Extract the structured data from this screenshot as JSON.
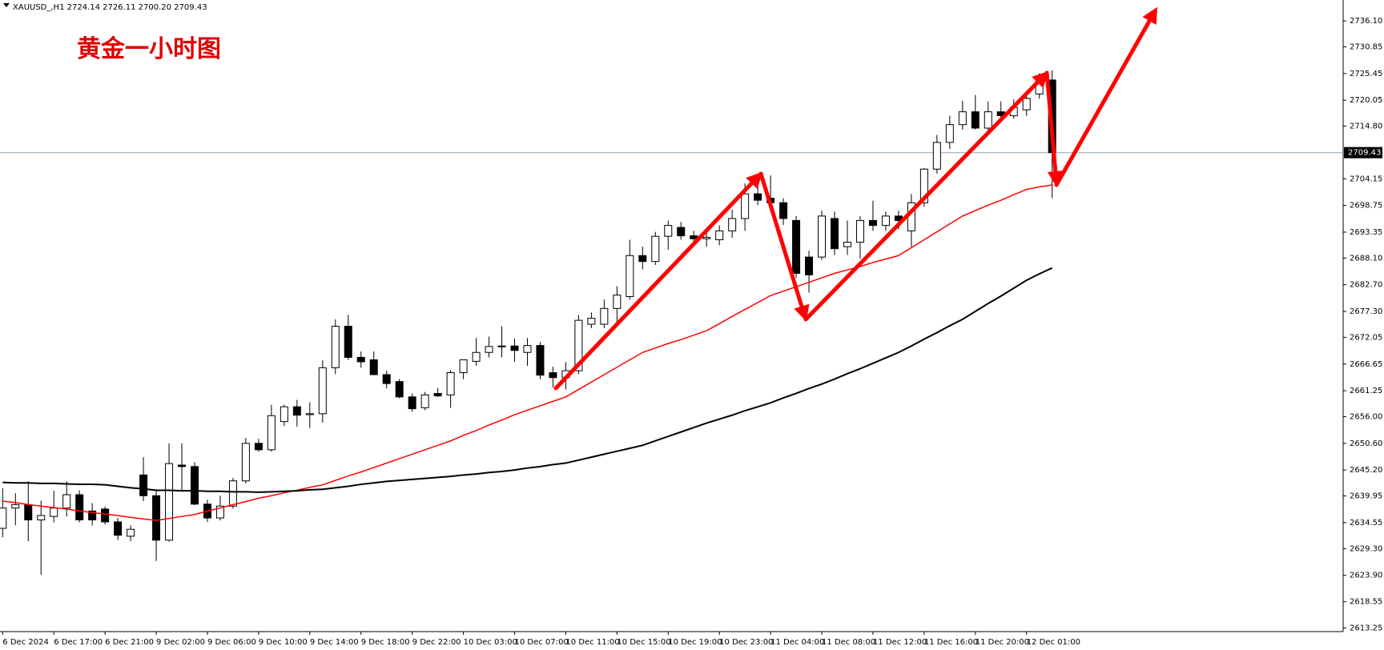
{
  "chart_data": {
    "type": "candlestick",
    "header": "XAUUSD_,H1  2724.14 2726.11 2700.20 2709.43",
    "annotation": "黄金一小时图",
    "categories": [
      "6 Dec 2024",
      null,
      null,
      null,
      "6 Dec 17:00",
      null,
      null,
      null,
      "6 Dec 21:00",
      null,
      null,
      null,
      "9 Dec 02:00",
      null,
      null,
      null,
      "9 Dec 06:00",
      null,
      null,
      null,
      "9 Dec 10:00",
      null,
      null,
      null,
      "9 Dec 14:00",
      null,
      null,
      null,
      "9 Dec 18:00",
      null,
      null,
      null,
      "9 Dec 22:00",
      null,
      null,
      null,
      "10 Dec 03:00",
      null,
      null,
      null,
      "10 Dec 07:00",
      null,
      null,
      null,
      "10 Dec 11:00",
      null,
      null,
      null,
      "10 Dec 15:00",
      null,
      null,
      null,
      "10 Dec 19:00",
      null,
      null,
      null,
      "10 Dec 23:00",
      null,
      null,
      null,
      "11 Dec 04:00",
      null,
      null,
      null,
      "11 Dec 08:00",
      null,
      null,
      null,
      "11 Dec 12:00",
      null,
      null,
      null,
      "11 Dec 16:00",
      null,
      null,
      null,
      "11 Dec 20:00",
      null,
      null,
      null,
      "12 Dec 01:00",
      null,
      null
    ],
    "open": [
      2633.4,
      2637.5,
      2638.2,
      2635.1,
      2635.8,
      2637.5,
      2640.2,
      2636.9,
      2637.3,
      2634.7,
      2631.8,
      2644.2,
      2640.0,
      2631.0,
      2646.2,
      2645.9,
      2638.3,
      2635.5,
      2637.9,
      2643.0,
      2650.6,
      2649.3,
      2655.0,
      2658.0,
      2656.4,
      2656.6,
      2665.9,
      2674.3,
      2668.0,
      2667.5,
      2664.5,
      2663.1,
      2660.0,
      2657.8,
      2660.7,
      2660.4,
      2664.9,
      2667.2,
      2669.0,
      2670.2,
      2670.3,
      2669.0,
      2670.4,
      2664.9,
      2663.9,
      2665.3,
      2674.7,
      2674.7,
      2677.9,
      2680.3,
      2688.6,
      2687.4,
      2692.5,
      2694.3,
      2692.6,
      2692.0,
      2691.8,
      2693.6,
      2696.1,
      2701.1,
      2700.2,
      2699.3,
      2695.7,
      2688.3,
      2688.3,
      2696.1,
      2690.4,
      2691.3,
      2695.7,
      2694.7,
      2696.6,
      2693.6,
      2699.3,
      2706.1,
      2711.5,
      2715.1,
      2717.7,
      2714.4,
      2717.7,
      2716.9,
      2718.1,
      2721.3,
      2724.14
    ],
    "high": [
      2641.5,
      2640.5,
      2642.9,
      2639.0,
      2641.0,
      2642.9,
      2641.1,
      2638.5,
      2637.8,
      2635.5,
      2634.0,
      2647.8,
      2641.2,
      2650.6,
      2650.6,
      2646.8,
      2639.2,
      2640.0,
      2643.6,
      2651.7,
      2651.5,
      2658.4,
      2658.4,
      2659.4,
      2658.9,
      2667.4,
      2675.7,
      2676.6,
      2669.2,
      2669.2,
      2665.3,
      2663.6,
      2660.7,
      2661.0,
      2661.8,
      2665.4,
      2667.5,
      2671.9,
      2672.2,
      2674.3,
      2671.8,
      2671.9,
      2671.1,
      2666.1,
      2667.0,
      2676.6,
      2677.1,
      2679.7,
      2682.4,
      2691.8,
      2690.4,
      2693.4,
      2695.7,
      2695.4,
      2693.6,
      2693.8,
      2694.7,
      2697.9,
      2703.2,
      2703.2,
      2704.8,
      2700.2,
      2696.6,
      2689.6,
      2697.7,
      2697.5,
      2695.7,
      2696.6,
      2699.7,
      2697.5,
      2697.7,
      2701.1,
      2706.3,
      2713.0,
      2716.9,
      2719.9,
      2721.1,
      2719.8,
      2719.8,
      2720.2,
      2721.8,
      2725.5,
      2726.11
    ],
    "low": [
      2631.6,
      2634.0,
      2630.8,
      2624.0,
      2634.6,
      2635.8,
      2634.6,
      2634.0,
      2634.2,
      2631.0,
      2630.8,
      2638.9,
      2626.8,
      2630.7,
      2641.0,
      2638.1,
      2634.7,
      2635.0,
      2637.4,
      2642.5,
      2648.9,
      2648.9,
      2654.1,
      2654.0,
      2653.7,
      2654.8,
      2664.6,
      2667.5,
      2665.9,
      2664.4,
      2661.7,
      2659.7,
      2657.0,
      2657.3,
      2660.0,
      2657.8,
      2663.6,
      2666.3,
      2668.0,
      2668.0,
      2667.1,
      2666.3,
      2663.6,
      2661.9,
      2661.5,
      2664.6,
      2673.9,
      2673.9,
      2674.2,
      2679.7,
      2685.8,
      2686.7,
      2689.8,
      2691.8,
      2690.7,
      2690.4,
      2690.7,
      2692.2,
      2693.6,
      2698.8,
      2697.5,
      2694.8,
      2684.1,
      2681.1,
      2687.7,
      2688.7,
      2688.7,
      2688.0,
      2693.6,
      2693.6,
      2693.9,
      2690.4,
      2698.5,
      2705.2,
      2710.2,
      2714.1,
      2714.1,
      2713.9,
      2716.3,
      2716.3,
      2716.9,
      2720.4,
      2700.2
    ],
    "close": [
      2637.5,
      2638.2,
      2635.1,
      2636.0,
      2637.5,
      2640.2,
      2635.1,
      2635.1,
      2634.7,
      2632.0,
      2633.2,
      2640.0,
      2631.0,
      2646.5,
      2645.9,
      2638.3,
      2635.5,
      2637.9,
      2643.0,
      2650.6,
      2649.3,
      2656.2,
      2658.0,
      2656.3,
      2656.6,
      2665.9,
      2674.3,
      2668.0,
      2667.1,
      2664.5,
      2662.7,
      2660.0,
      2657.6,
      2660.4,
      2660.2,
      2664.9,
      2667.5,
      2669.0,
      2670.2,
      2670.3,
      2669.4,
      2670.4,
      2664.4,
      2663.9,
      2665.3,
      2675.5,
      2675.9,
      2677.9,
      2680.6,
      2688.6,
      2687.4,
      2692.5,
      2694.7,
      2692.6,
      2692.0,
      2692.3,
      2693.6,
      2696.1,
      2701.1,
      2699.8,
      2699.3,
      2696.1,
      2685.0,
      2684.7,
      2696.6,
      2690.0,
      2691.3,
      2695.7,
      2694.7,
      2696.6,
      2695.7,
      2699.3,
      2706.1,
      2711.5,
      2715.1,
      2717.7,
      2714.4,
      2717.7,
      2716.9,
      2718.6,
      2720.4,
      2724.1,
      2709.43
    ],
    "overlays": [
      {
        "color": "#ff0000",
        "values": [
          2638.9,
          2638.6,
          2638.2,
          2637.9,
          2637.6,
          2637.3,
          2636.9,
          2636.6,
          2636.3,
          2636.0,
          2635.6,
          2635.3,
          2635.0,
          2635.4,
          2635.8,
          2636.2,
          2636.9,
          2637.5,
          2638.2,
          2638.8,
          2639.5,
          2640.0,
          2640.6,
          2641.1,
          2641.7,
          2642.2,
          2643.1,
          2644.0,
          2644.8,
          2645.7,
          2646.6,
          2647.5,
          2648.4,
          2649.3,
          2650.2,
          2651.1,
          2652.2,
          2653.2,
          2654.3,
          2655.3,
          2656.4,
          2657.3,
          2658.2,
          2659.1,
          2660.0,
          2661.5,
          2663.0,
          2664.5,
          2666.0,
          2667.5,
          2669.0,
          2669.9,
          2670.8,
          2671.6,
          2672.5,
          2673.4,
          2674.8,
          2676.3,
          2677.7,
          2679.1,
          2680.5,
          2681.4,
          2682.3,
          2683.2,
          2684.1,
          2685.0,
          2685.7,
          2686.4,
          2687.2,
          2687.9,
          2688.6,
          2690.2,
          2691.8,
          2693.4,
          2695.0,
          2696.6,
          2697.7,
          2698.8,
          2699.8,
          2700.9,
          2702.0,
          2702.5,
          2702.9
        ]
      },
      {
        "color": "#000000",
        "values": [
          2642.7,
          2642.6,
          2642.6,
          2642.5,
          2642.5,
          2642.4,
          2642.3,
          2642.3,
          2642.2,
          2641.9,
          2641.6,
          2641.4,
          2641.1,
          2641.1,
          2641.0,
          2641.0,
          2640.9,
          2640.9,
          2640.8,
          2640.8,
          2640.7,
          2640.8,
          2640.9,
          2641.0,
          2641.2,
          2641.3,
          2641.6,
          2641.9,
          2642.3,
          2642.6,
          2642.9,
          2643.1,
          2643.3,
          2643.5,
          2643.7,
          2643.9,
          2644.2,
          2644.4,
          2644.7,
          2644.9,
          2645.2,
          2645.6,
          2645.9,
          2646.3,
          2646.6,
          2647.2,
          2647.8,
          2648.4,
          2649.0,
          2649.6,
          2650.2,
          2651.1,
          2652.0,
          2652.9,
          2653.8,
          2654.7,
          2655.5,
          2656.3,
          2657.2,
          2658.0,
          2658.8,
          2659.8,
          2660.7,
          2661.7,
          2662.6,
          2663.6,
          2664.7,
          2665.7,
          2666.8,
          2667.9,
          2669.0,
          2670.3,
          2671.7,
          2673.0,
          2674.4,
          2675.7,
          2677.3,
          2678.9,
          2680.4,
          2682.0,
          2683.6,
          2684.9,
          2686.1
        ]
      }
    ],
    "last_price": 2709.43,
    "ylim": [
      2612.5,
      2740.0
    ],
    "yticks": [
      2613.25,
      2618.55,
      {
        "value": 2623.9,
        "label": "2623.90"
      },
      {
        "value": 2629.3,
        "label": "2629.30"
      },
      2634.55,
      2639.95,
      {
        "value": 2645.2,
        "label": "2645.20"
      },
      {
        "value": 2650.6,
        "label": "2650.60"
      },
      {
        "value": 2656,
        "label": "2656.00"
      },
      2661.25,
      2666.65,
      2672.05,
      {
        "value": 2677.3,
        "label": "2677.30"
      },
      {
        "value": 2682.7,
        "label": "2682.70"
      },
      {
        "value": 2688.1,
        "label": "2688.10"
      },
      2693.35,
      2698.75,
      2704.15,
      {
        "value": 2714.8,
        "label": "2714.80"
      },
      2720.05,
      2725.45,
      2730.85,
      {
        "value": 2736.1,
        "label": "2736.10"
      }
    ],
    "grid": false,
    "up_color": "#ffffff",
    "down_color": "#000000"
  }
}
